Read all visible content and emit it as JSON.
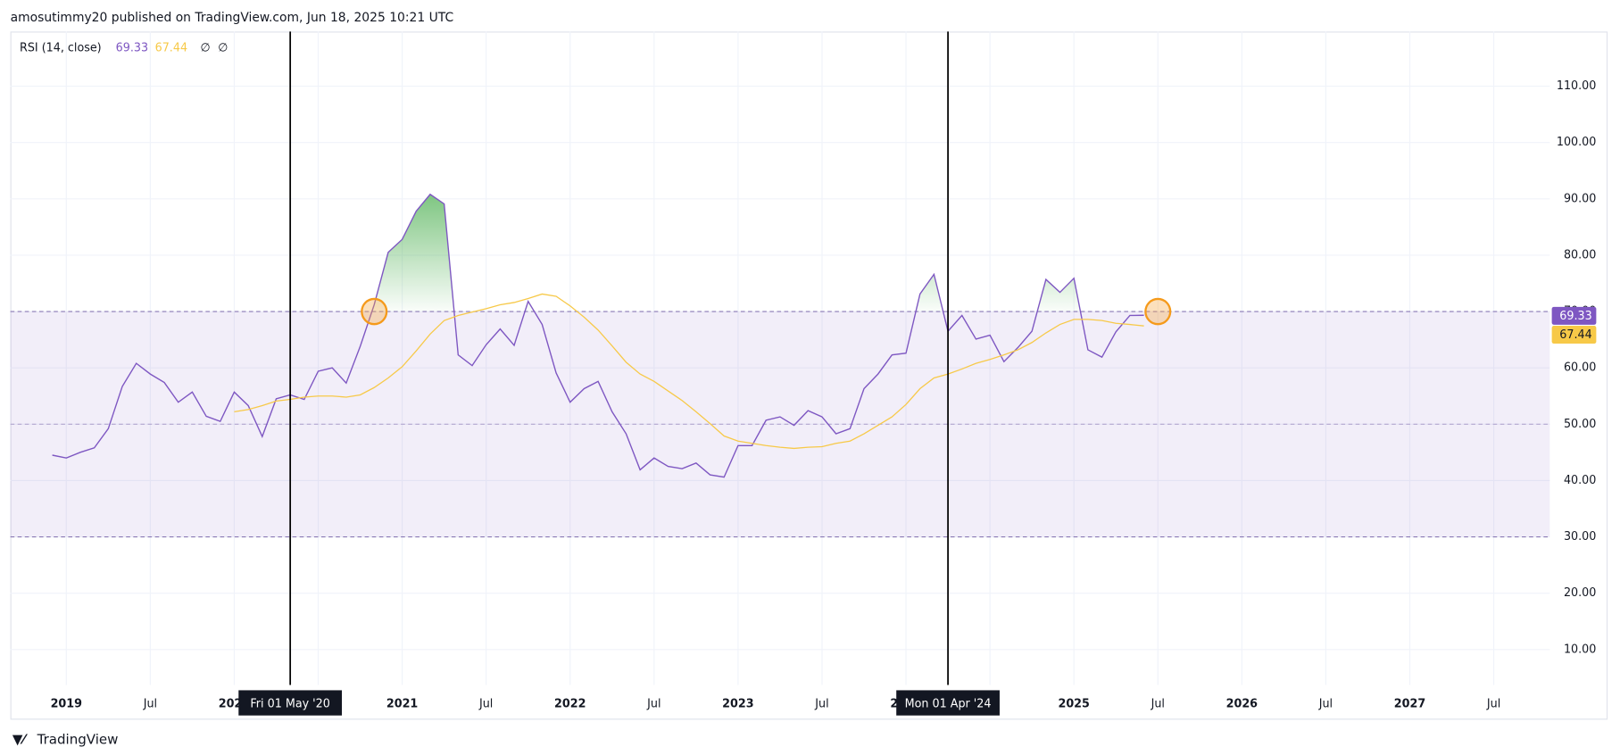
{
  "header": "amosutimmy20 published on TradingView.com, Jun 18, 2025 10:21 UTC",
  "footer": "TradingView",
  "chart_data": {
    "type": "line",
    "indicator": "RSI (14, close)",
    "legend_marks": [
      "∅",
      "∅"
    ],
    "x": [
      "2018-12",
      "2019-01",
      "2019-02",
      "2019-03",
      "2019-04",
      "2019-05",
      "2019-06",
      "2019-07",
      "2019-08",
      "2019-09",
      "2019-10",
      "2019-11",
      "2019-12",
      "2020-01",
      "2020-02",
      "2020-03",
      "2020-04",
      "2020-05",
      "2020-06",
      "2020-07",
      "2020-08",
      "2020-09",
      "2020-10",
      "2020-11",
      "2020-12",
      "2021-01",
      "2021-02",
      "2021-03",
      "2021-04",
      "2021-05",
      "2021-06",
      "2021-07",
      "2021-08",
      "2021-09",
      "2021-10",
      "2021-11",
      "2021-12",
      "2022-01",
      "2022-02",
      "2022-03",
      "2022-04",
      "2022-05",
      "2022-06",
      "2022-07",
      "2022-08",
      "2022-09",
      "2022-10",
      "2022-11",
      "2022-12",
      "2023-01",
      "2023-02",
      "2023-03",
      "2023-04",
      "2023-05",
      "2023-06",
      "2023-07",
      "2023-08",
      "2023-09",
      "2023-10",
      "2023-11",
      "2023-12",
      "2024-01",
      "2024-02",
      "2024-03",
      "2024-04",
      "2024-05",
      "2024-06",
      "2024-07",
      "2024-08",
      "2024-09",
      "2024-10",
      "2024-11",
      "2024-12",
      "2025-01",
      "2025-02",
      "2025-03",
      "2025-04",
      "2025-05",
      "2025-06"
    ],
    "series": [
      {
        "color": "#7e57c2",
        "values": [
          44.5,
          44.0,
          45.0,
          45.8,
          49.2,
          56.7,
          60.8,
          58.9,
          57.4,
          53.9,
          55.7,
          51.4,
          50.5,
          55.7,
          53.3,
          47.8,
          54.5,
          55.2,
          54.4,
          59.4,
          60.0,
          57.3,
          63.8,
          71.2,
          80.5,
          82.8,
          87.8,
          90.8,
          89.1,
          62.3,
          60.4,
          64.1,
          66.9,
          64.0,
          71.8,
          67.7,
          59.1,
          53.9,
          56.3,
          57.6,
          52.2,
          48.3,
          41.9,
          44.0,
          42.5,
          42.1,
          43.1,
          41.0,
          40.6,
          46.2,
          46.2,
          50.7,
          51.3,
          49.8,
          52.4,
          51.3,
          48.3,
          49.2,
          56.3,
          58.9,
          62.3,
          62.6,
          73.1,
          76.6,
          66.5,
          69.3,
          65.1,
          65.8,
          61.1,
          63.6,
          66.5,
          75.7,
          73.4,
          75.9,
          63.2,
          61.9,
          66.4,
          69.3,
          69.33
        ]
      },
      {
        "color": "#f7c948",
        "values": [
          null,
          null,
          null,
          null,
          null,
          null,
          null,
          null,
          null,
          null,
          null,
          null,
          null,
          52.2,
          52.6,
          53.3,
          54.1,
          54.4,
          54.8,
          55.0,
          55.0,
          54.8,
          55.2,
          56.5,
          58.2,
          60.2,
          63.0,
          66.0,
          68.4,
          69.3,
          69.9,
          70.5,
          71.2,
          71.6,
          72.3,
          73.1,
          72.7,
          71.0,
          69.0,
          66.7,
          63.9,
          61.0,
          58.9,
          57.6,
          55.9,
          54.2,
          52.2,
          50.1,
          47.9,
          47.0,
          46.6,
          46.2,
          45.9,
          45.7,
          45.9,
          46.0,
          46.6,
          47.0,
          48.3,
          49.8,
          51.3,
          53.5,
          56.3,
          58.2,
          58.9,
          59.8,
          60.8,
          61.5,
          62.3,
          63.2,
          64.5,
          66.2,
          67.7,
          68.6,
          68.6,
          68.4,
          67.9,
          67.7,
          67.44
        ]
      }
    ],
    "bands": {
      "upper": 70,
      "middle": 50,
      "lower": 30
    },
    "highlights": [
      {
        "x": "2020-11",
        "value": 70
      },
      {
        "x": "2025-07",
        "value": 70
      }
    ],
    "crosshairs": [
      {
        "x": "2020-05",
        "label": "Fri 01 May '20"
      },
      {
        "x": "2024-04",
        "label": "Mon 01 Apr '24"
      }
    ],
    "xlim": [
      "2018-09",
      "2027-11"
    ],
    "xticks": [
      {
        "value": "2019-01",
        "label": "2019"
      },
      {
        "value": "2019-07",
        "label": "Jul"
      },
      {
        "value": "2020-01",
        "label": "2020"
      },
      {
        "value": "2020-07",
        "label": "Jul"
      },
      {
        "value": "2021-01",
        "label": "2021"
      },
      {
        "value": "2021-07",
        "label": "Jul"
      },
      {
        "value": "2022-01",
        "label": "2022"
      },
      {
        "value": "2022-07",
        "label": "Jul"
      },
      {
        "value": "2023-01",
        "label": "2023"
      },
      {
        "value": "2023-07",
        "label": "Jul"
      },
      {
        "value": "2024-01",
        "label": "2024"
      },
      {
        "value": "2024-07",
        "label": "Jul"
      },
      {
        "value": "2025-01",
        "label": "2025"
      },
      {
        "value": "2025-07",
        "label": "Jul"
      },
      {
        "value": "2026-01",
        "label": "2026"
      },
      {
        "value": "2026-07",
        "label": "Jul"
      },
      {
        "value": "2027-01",
        "label": "2027"
      },
      {
        "value": "2027-07",
        "label": "Jul"
      }
    ],
    "ylim": [
      3.7,
      119.7
    ],
    "yticks": [
      {
        "value": 10,
        "label": "10.00"
      },
      {
        "value": 20,
        "label": "20.00"
      },
      {
        "value": 30,
        "label": "30.00"
      },
      {
        "value": 40,
        "label": "40.00"
      },
      {
        "value": 50,
        "label": "50.00"
      },
      {
        "value": 60,
        "label": "60.00"
      },
      {
        "value": 70,
        "label": "70.00"
      },
      {
        "value": 80,
        "label": "80.00"
      },
      {
        "value": 90,
        "label": "90.00"
      },
      {
        "value": 100,
        "label": "100.00"
      },
      {
        "value": 110,
        "label": "110.00"
      }
    ],
    "grid": true
  }
}
